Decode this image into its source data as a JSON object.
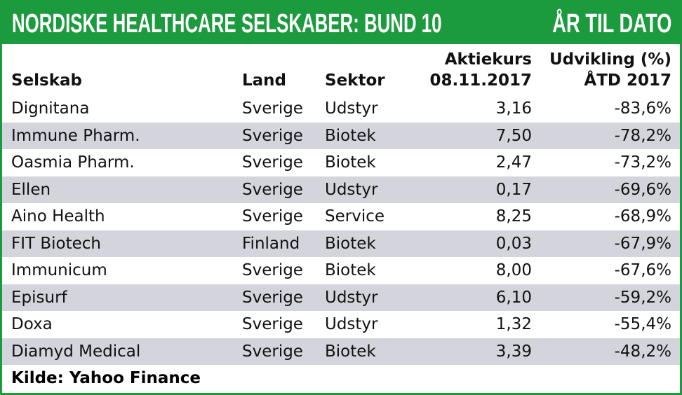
{
  "header": {
    "title": "NORDISKE HEALTHCARE SELSKABER: BUND 10",
    "subtitle": "ÅR TIL DATO"
  },
  "table": {
    "columns": [
      [
        "Selskab"
      ],
      [
        "Land"
      ],
      [
        "Sektor"
      ],
      [
        "Aktiekurs",
        "08.11.2017"
      ],
      [
        "Udvikling (%)",
        "ÅTD 2017"
      ]
    ],
    "rows": [
      [
        "Dignitana",
        "Sverige",
        "Udstyr",
        "3,16",
        "-83,6%"
      ],
      [
        "Immune Pharm.",
        "Sverige",
        "Biotek",
        "7,50",
        "-78,2%"
      ],
      [
        "Oasmia Pharm.",
        "Sverige",
        "Biotek",
        "2,47",
        "-73,2%"
      ],
      [
        "Ellen",
        "Sverige",
        "Udstyr",
        "0,17",
        "-69,6%"
      ],
      [
        "Aino Health",
        "Sverige",
        "Service",
        "8,25",
        "-68,9%"
      ],
      [
        "FIT Biotech",
        "Finland",
        "Biotek",
        "0,03",
        "-67,9%"
      ],
      [
        "Immunicum",
        "Sverige",
        "Biotek",
        "8,00",
        "-67,6%"
      ],
      [
        "Episurf",
        "Sverige",
        "Udstyr",
        "6,10",
        "-59,2%"
      ],
      [
        "Doxa",
        "Sverige",
        "Udstyr",
        "1,32",
        "-55,4%"
      ],
      [
        "Diamyd Medical",
        "Sverige",
        "Biotek",
        "3,39",
        "-48,2%"
      ]
    ]
  },
  "footer": {
    "source": "Kilde: Yahoo Finance"
  }
}
